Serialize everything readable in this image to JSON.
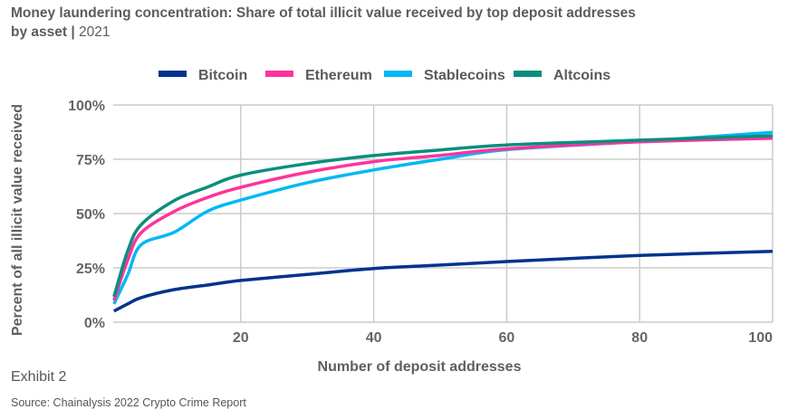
{
  "header": {
    "title_bold": "Money laundering concentration: Share of total illicit value received by top deposit addresses by asset",
    "separator": "|",
    "year": "2021"
  },
  "footer": {
    "exhibit": "Exhibit 2",
    "source": "Source: Chainalysis 2022 Crypto Crime Report"
  },
  "chart_data": {
    "type": "line",
    "title": "Money laundering concentration: Share of total illicit value received by top deposit addresses by asset | 2021",
    "xlabel": "Number of deposit addresses",
    "ylabel": "Percent of all illicit value received",
    "xlim": [
      0,
      100
    ],
    "ylim": [
      0,
      100
    ],
    "x_ticks": [
      20,
      40,
      60,
      80,
      100
    ],
    "x_tick_labels": [
      "20",
      "40",
      "60",
      "80",
      "100"
    ],
    "y_ticks": [
      0,
      25,
      50,
      75,
      100
    ],
    "y_tick_labels": [
      "0%",
      "25%",
      "50%",
      "75%",
      "100%"
    ],
    "grid": true,
    "legend_position": "top",
    "x": [
      1,
      3,
      5,
      10,
      15,
      20,
      30,
      40,
      50,
      60,
      80,
      100
    ],
    "series": [
      {
        "name": "Bitcoin",
        "color": "#00338d",
        "values": [
          5.1,
          8.4,
          11.3,
          15.0,
          17.1,
          19.2,
          22.0,
          24.7,
          26.3,
          27.9,
          30.7,
          32.6
        ]
      },
      {
        "name": "Ethereum",
        "color": "#fd349c",
        "values": [
          10.0,
          28.6,
          41.1,
          51.0,
          57.4,
          62.1,
          69.0,
          73.9,
          76.8,
          79.8,
          83.0,
          84.7
        ]
      },
      {
        "name": "Stablecoins",
        "color": "#00b8f5",
        "values": [
          8.4,
          21.8,
          35.6,
          41.4,
          51.1,
          56.2,
          64.2,
          70.1,
          75.0,
          79.4,
          83.2,
          87.4
        ]
      },
      {
        "name": "Altcoins",
        "color": "#098e7e",
        "values": [
          11.7,
          32.8,
          44.8,
          56.0,
          62.2,
          67.7,
          73.0,
          76.7,
          79.3,
          81.6,
          83.8,
          85.8
        ]
      }
    ]
  }
}
